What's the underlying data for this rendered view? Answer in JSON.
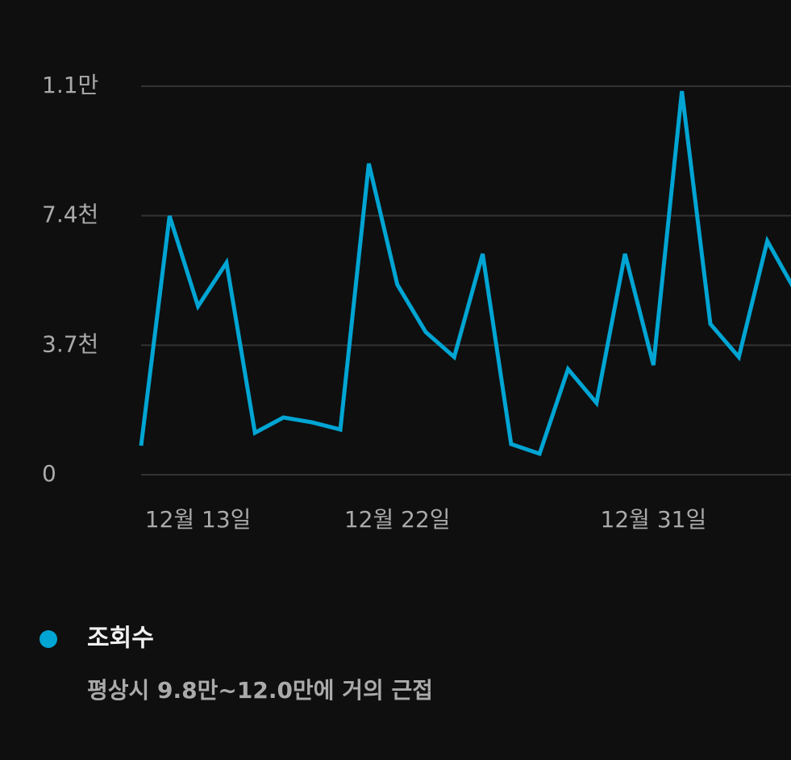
{
  "chart_data": {
    "type": "line",
    "categories": [
      null,
      null,
      "12월 13일",
      null,
      null,
      null,
      null,
      null,
      null,
      "12월 22일",
      null,
      null,
      null,
      null,
      null,
      null,
      null,
      null,
      "12월 31일",
      null,
      null,
      null,
      null,
      null
    ],
    "series": [
      {
        "name": "조회수",
        "color": "#00a5d3",
        "values": [
          829,
          7393,
          4813,
          6057,
          1198,
          1635,
          1497,
          1290,
          8890,
          5435,
          4076,
          3362,
          6310,
          875,
          599,
          3017,
          2050,
          6310,
          3132,
          10962,
          4307,
          3362,
          6679,
          5228
        ]
      }
    ],
    "legend_note": "평상시 9.8만~12.0만에 거의 근접",
    "ylim": [
      0,
      11100
    ],
    "yticks": [
      0,
      {
        "value": 3700,
        "label": "3.7천"
      },
      {
        "value": 7400,
        "label": "7.4천"
      },
      {
        "value": 11100,
        "label": "1.1만"
      }
    ],
    "grid": true
  }
}
